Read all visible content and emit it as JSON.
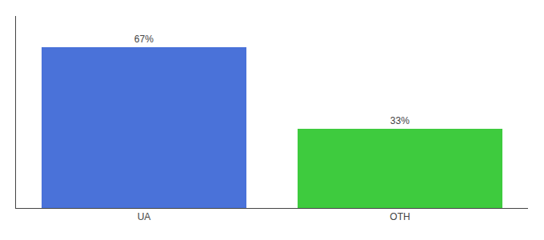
{
  "chart_data": {
    "type": "bar",
    "categories": [
      "UA",
      "OTH"
    ],
    "values": [
      67,
      33
    ],
    "value_labels": [
      "67%",
      "33%"
    ],
    "colors": [
      "#4a72d9",
      "#3ecb3e"
    ],
    "data_labels": true,
    "ylim": [
      0,
      80
    ],
    "yticks": [],
    "tick_labels": "x",
    "grid": false
  }
}
